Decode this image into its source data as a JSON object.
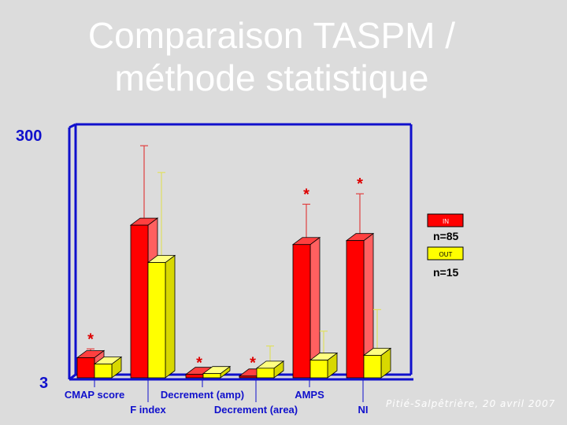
{
  "slide": {
    "title_line1": "Comparaison TASPM /",
    "title_line2": "méthode statistique",
    "footer": "Pitié-Salpêtrière, 20 avril 2007"
  },
  "chart_data": {
    "type": "bar",
    "style": "3d",
    "y_scale": "log",
    "ylim": [
      3,
      300
    ],
    "yticks": [
      "3",
      "300"
    ],
    "grid": false,
    "legend_position": "right",
    "categories": [
      "CMAP score",
      "F index",
      "Decrement (amp)",
      "Decrement (area)",
      "AMPS",
      "NI"
    ],
    "series": [
      {
        "name": "IN",
        "legend_note": "n=85",
        "color": "#ff0000",
        "values": [
          4.4,
          55,
          3.2,
          3.1,
          38,
          41
        ],
        "error_upper": [
          5.2,
          250,
          3.3,
          3.3,
          82,
          100
        ],
        "significant": [
          true,
          false,
          true,
          true,
          true,
          true
        ]
      },
      {
        "name": "OUT",
        "legend_note": "n=15",
        "color": "#ffff00",
        "values": [
          3.9,
          27,
          3.25,
          3.6,
          4.2,
          4.6
        ],
        "error_upper": [
          3.9,
          150,
          3.25,
          5.5,
          7.3,
          11
        ],
        "significant": [
          false,
          false,
          false,
          false,
          false,
          false
        ]
      }
    ],
    "significance_marker": "*"
  }
}
